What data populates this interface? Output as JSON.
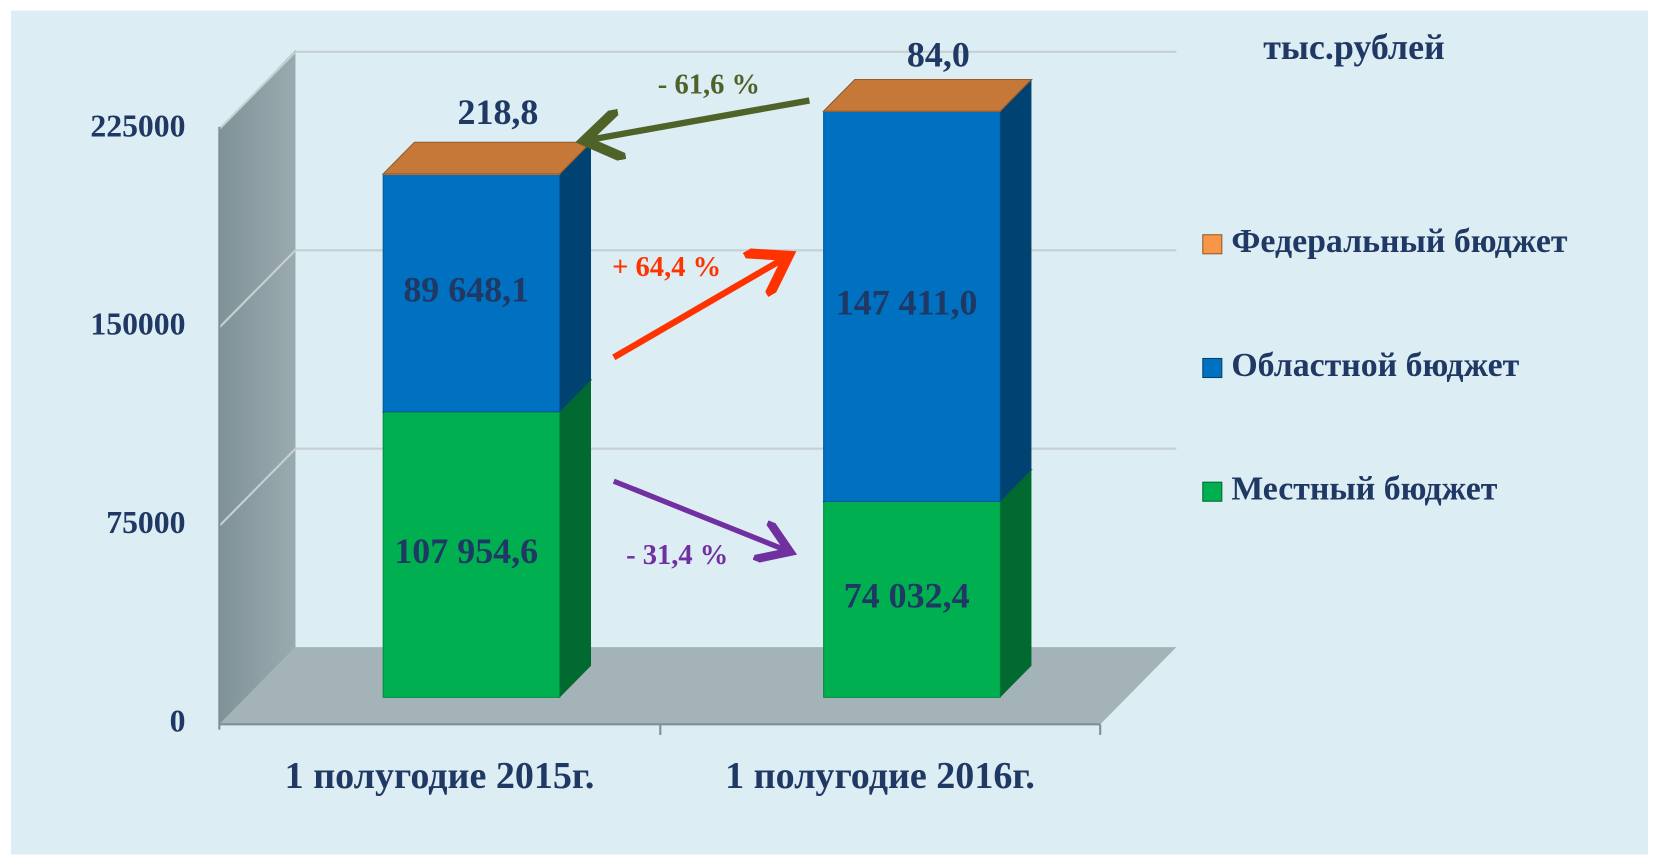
{
  "chart_data": {
    "type": "bar3d_stacked",
    "unit_label": "тыс.рублей",
    "categories": [
      "1 полугодие 2015г.",
      "1 полугодие 2016г."
    ],
    "series": [
      {
        "name": "Местный бюджет",
        "color": "#00b050",
        "values": [
          107954.6,
          74032.4
        ],
        "value_labels": [
          "107 954,6",
          "74 032,4"
        ]
      },
      {
        "name": "Областной бюджет",
        "color": "#0070c0",
        "values": [
          89648.1,
          147411.0
        ],
        "value_labels": [
          "89 648,1",
          "147 411,0"
        ]
      },
      {
        "name": "Федеральный бюджет",
        "color": "#f79646",
        "values": [
          218.8,
          84.0
        ],
        "value_labels": [
          "218,8",
          "84,0"
        ]
      }
    ],
    "ylim": [
      0,
      225000
    ],
    "yticks": [
      0,
      75000,
      150000,
      225000
    ],
    "grid": true,
    "legend": "right",
    "annotations": [
      {
        "text": "- 61,6 %",
        "color": "#4f6228"
      },
      {
        "text": "+ 64,4 %",
        "color": "#ff3300"
      },
      {
        "text": "- 31,4 %",
        "color": "#7030a0"
      }
    ]
  }
}
